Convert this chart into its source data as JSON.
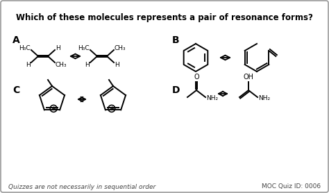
{
  "title": "Which of these molecules represents a pair of resonance forms?",
  "footer_left": "Quizzes are not necessarily in sequential order",
  "footer_right": "MOC Quiz ID: 0006",
  "border_color": "#999999",
  "text_color": "#111111",
  "section_labels": [
    "A",
    "B",
    "C",
    "D"
  ],
  "title_fontsize": 8.5,
  "label_fontsize": 10,
  "footer_fontsize": 6.5,
  "struct_fontsize": 6.5
}
